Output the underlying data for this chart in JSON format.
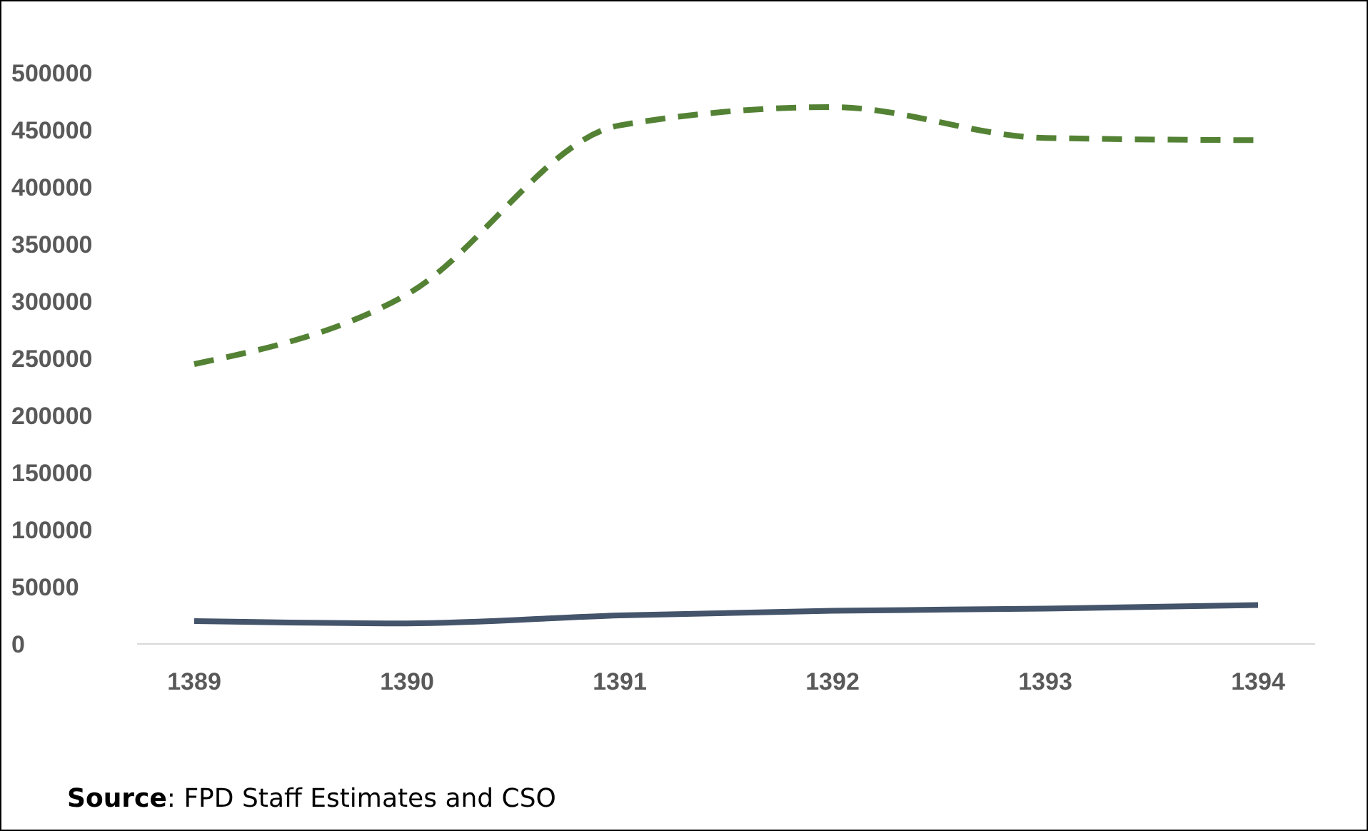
{
  "chart_data": {
    "type": "line",
    "categories": [
      "1389",
      "1390",
      "1391",
      "1392",
      "1393",
      "1394"
    ],
    "series": [
      {
        "color": "#548235",
        "line_style": "dashed",
        "values": [
          245000,
          306000,
          454000,
          470000,
          443000,
          441000
        ]
      },
      {
        "color": "#44546a",
        "line_style": "solid",
        "values": [
          20000,
          18000,
          25000,
          29000,
          31000,
          34000
        ]
      }
    ],
    "ylim": [
      0,
      500000
    ],
    "yticks": [
      0,
      50000,
      100000,
      150000,
      200000,
      250000,
      300000,
      350000,
      400000,
      450000,
      500000
    ],
    "marker": "none",
    "annotations": [
      "Source: FPD Staff Estimates and CSO"
    ]
  }
}
